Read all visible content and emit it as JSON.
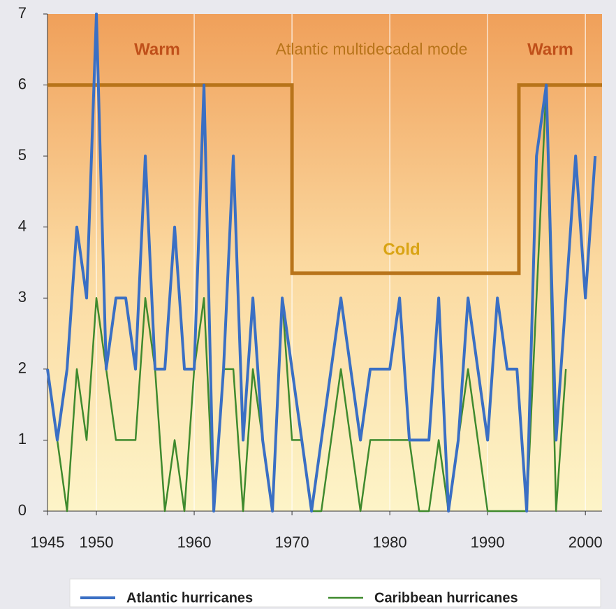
{
  "chart_data": {
    "type": "line",
    "x": [
      1945,
      1946,
      1947,
      1948,
      1949,
      1950,
      1951,
      1952,
      1953,
      1954,
      1955,
      1956,
      1957,
      1958,
      1959,
      1960,
      1961,
      1962,
      1963,
      1964,
      1965,
      1966,
      1967,
      1968,
      1969,
      1970,
      1971,
      1972,
      1973,
      1974,
      1975,
      1976,
      1977,
      1978,
      1979,
      1980,
      1981,
      1982,
      1983,
      1984,
      1985,
      1986,
      1987,
      1988,
      1989,
      1990,
      1991,
      1992,
      1993,
      1994,
      1995,
      1996,
      1997,
      1998,
      1999,
      2000,
      2001
    ],
    "series": [
      {
        "name": "Atlantic hurricanes",
        "color": "#3a6fc4",
        "values": [
          2,
          1,
          2,
          4,
          3,
          7,
          2,
          3,
          3,
          2,
          5,
          2,
          2,
          4,
          2,
          2,
          6,
          0,
          2,
          5,
          1,
          3,
          1,
          0,
          3,
          2,
          1,
          0,
          1,
          2,
          3,
          2,
          1,
          2,
          2,
          2,
          3,
          1,
          1,
          1,
          3,
          0,
          1,
          3,
          2,
          1,
          3,
          2,
          2,
          0,
          5,
          6,
          1,
          3,
          5,
          3,
          5
        ]
      },
      {
        "name": "Caribbean hurricanes",
        "color": "#3f8a2e",
        "values": [
          2,
          1,
          0,
          2,
          1,
          3,
          2,
          1,
          1,
          1,
          3,
          2,
          0,
          1,
          0,
          2,
          3,
          0,
          2,
          2,
          0,
          2,
          1,
          0,
          3,
          1,
          1,
          0,
          0,
          1,
          2,
          1,
          0,
          1,
          1,
          1,
          1,
          1,
          0,
          0,
          1,
          0,
          1,
          2,
          1,
          0,
          0,
          0,
          0,
          0,
          3,
          6,
          0,
          2,
          null,
          null,
          null
        ]
      }
    ],
    "mode_line": {
      "label": "Atlantic multidecadal mode",
      "color": "#b8741a",
      "x": [
        1945,
        1970,
        1970,
        1993.2,
        1993.2,
        2001.7
      ],
      "values": [
        6,
        6,
        3.35,
        3.35,
        6,
        6
      ]
    },
    "annotations": [
      "Warm",
      "Warm",
      "Cold"
    ],
    "xlim": [
      1945,
      2001.7
    ],
    "xticks": [
      1945,
      1950,
      1960,
      1970,
      1980,
      1990,
      2000
    ],
    "ylim": [
      0,
      7
    ],
    "yticks": [
      0,
      1,
      2,
      3,
      4,
      5,
      6,
      7
    ],
    "grid": true
  }
}
